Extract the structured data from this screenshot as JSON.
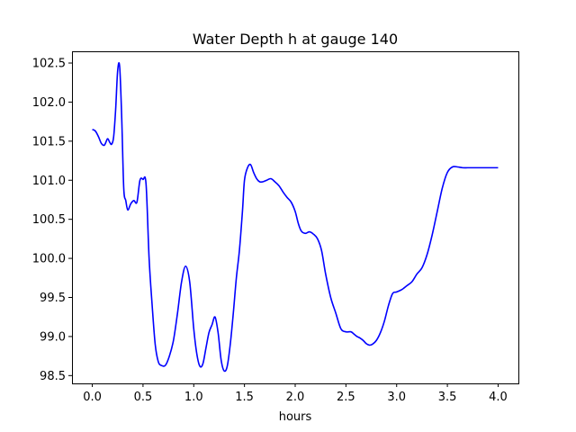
{
  "chart_data": {
    "type": "line",
    "title": "Water Depth h at gauge 140",
    "xlabel": "hours",
    "ylabel": "",
    "xlim": [
      -0.2,
      4.2
    ],
    "ylim": [
      98.4,
      102.65
    ],
    "xticks": [
      0.0,
      0.5,
      1.0,
      1.5,
      2.0,
      2.5,
      3.0,
      3.5,
      4.0
    ],
    "xtick_labels": [
      "0.0",
      "0.5",
      "1.0",
      "1.5",
      "2.0",
      "2.5",
      "3.0",
      "3.5",
      "4.0"
    ],
    "yticks": [
      98.5,
      99.0,
      99.5,
      100.0,
      100.5,
      101.0,
      101.5,
      102.0,
      102.5
    ],
    "ytick_labels": [
      "98.5",
      "99.0",
      "99.5",
      "100.0",
      "100.5",
      "101.0",
      "101.5",
      "102.0",
      "102.5"
    ],
    "grid": false,
    "series": [
      {
        "color": "#0000ff",
        "x": [
          0.0,
          0.03,
          0.06,
          0.09,
          0.12,
          0.15,
          0.17,
          0.19,
          0.21,
          0.23,
          0.25,
          0.27,
          0.29,
          0.31,
          0.33,
          0.35,
          0.38,
          0.41,
          0.44,
          0.47,
          0.5,
          0.53,
          0.56,
          0.59,
          0.62,
          0.65,
          0.68,
          0.72,
          0.76,
          0.8,
          0.84,
          0.88,
          0.92,
          0.96,
          1.0,
          1.03,
          1.06,
          1.09,
          1.12,
          1.15,
          1.18,
          1.21,
          1.24,
          1.27,
          1.3,
          1.33,
          1.36,
          1.39,
          1.42,
          1.45,
          1.48,
          1.5,
          1.53,
          1.56,
          1.59,
          1.62,
          1.65,
          1.68,
          1.72,
          1.76,
          1.8,
          1.84,
          1.88,
          1.92,
          1.96,
          2.0,
          2.03,
          2.06,
          2.1,
          2.14,
          2.18,
          2.22,
          2.26,
          2.3,
          2.35,
          2.4,
          2.45,
          2.5,
          2.55,
          2.58,
          2.61,
          2.64,
          2.67,
          2.7,
          2.73,
          2.76,
          2.8,
          2.84,
          2.88,
          2.92,
          2.96,
          3.0,
          3.05,
          3.1,
          3.15,
          3.2,
          3.25,
          3.3,
          3.35,
          3.4,
          3.45,
          3.5,
          3.55,
          3.6,
          3.65,
          3.7,
          3.75,
          3.8,
          3.85,
          3.9,
          3.95,
          3.98,
          4.0
        ],
        "y": [
          101.65,
          101.63,
          101.56,
          101.47,
          101.45,
          101.53,
          101.49,
          101.46,
          101.55,
          101.9,
          102.4,
          102.45,
          101.8,
          100.9,
          100.74,
          100.62,
          100.7,
          100.74,
          100.72,
          101.0,
          101.01,
          100.95,
          100.0,
          99.4,
          98.9,
          98.68,
          98.63,
          98.63,
          98.75,
          98.95,
          99.3,
          99.7,
          99.9,
          99.7,
          99.1,
          98.78,
          98.62,
          98.65,
          98.85,
          99.05,
          99.15,
          99.25,
          99.05,
          98.7,
          98.56,
          98.62,
          98.9,
          99.3,
          99.75,
          100.1,
          100.6,
          101.0,
          101.16,
          101.2,
          101.1,
          101.02,
          100.98,
          100.98,
          101.0,
          101.02,
          100.98,
          100.93,
          100.85,
          100.78,
          100.72,
          100.6,
          100.45,
          100.35,
          100.32,
          100.34,
          100.31,
          100.25,
          100.1,
          99.8,
          99.5,
          99.3,
          99.1,
          99.06,
          99.06,
          99.03,
          99.0,
          98.98,
          98.95,
          98.91,
          98.89,
          98.9,
          98.95,
          99.05,
          99.2,
          99.4,
          99.55,
          99.57,
          99.6,
          99.65,
          99.7,
          99.8,
          99.88,
          100.05,
          100.3,
          100.6,
          100.9,
          101.1,
          101.17,
          101.17,
          101.16,
          101.16,
          101.16,
          101.16,
          101.16,
          101.16,
          101.16,
          101.16,
          101.16
        ]
      }
    ]
  }
}
